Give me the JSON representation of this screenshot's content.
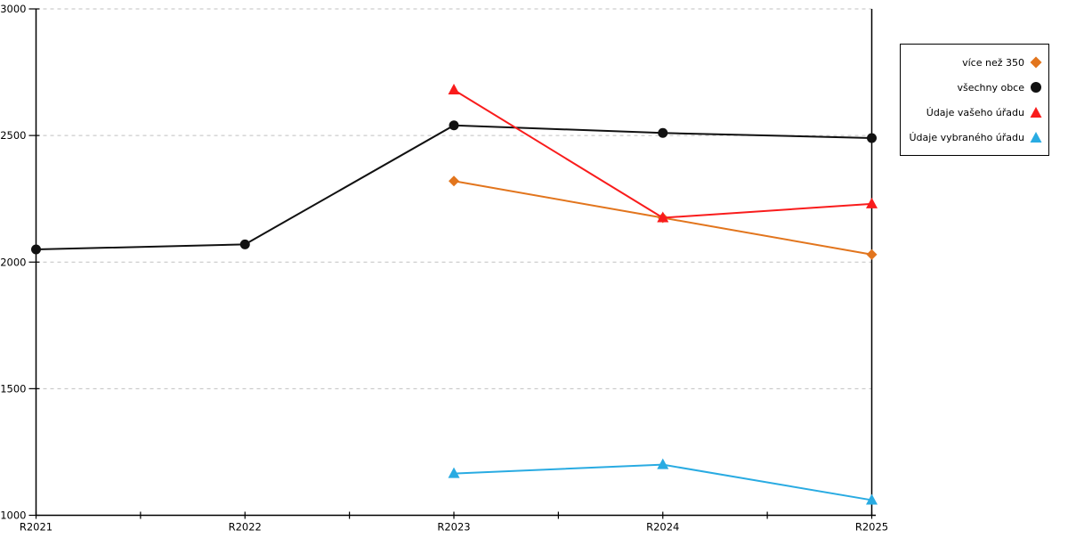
{
  "chart_data": {
    "type": "line",
    "title": "",
    "xlabel": "",
    "ylabel": "",
    "categories": [
      "R2021",
      "R2022",
      "R2023",
      "R2024",
      "R2025"
    ],
    "ylim": [
      1000,
      3000
    ],
    "y_ticks": [
      1000,
      1500,
      2000,
      2500,
      3000
    ],
    "grid": "horizontal dashed gridlines at 1500, 2000, 2500, 3000",
    "legend_position": "right",
    "series": [
      {
        "name": "více než 350",
        "color": "#E2751D",
        "marker": "diamond",
        "x": [
          "R2023",
          "R2024",
          "R2025"
        ],
        "values": [
          2320,
          2175,
          2030
        ]
      },
      {
        "name": "všechny obce",
        "color": "#111111",
        "marker": "circle",
        "x": [
          "R2021",
          "R2022",
          "R2023",
          "R2024",
          "R2025"
        ],
        "values": [
          2050,
          2070,
          2540,
          2510,
          2490
        ]
      },
      {
        "name": "Údaje vašeho úřadu",
        "color": "#F91C1C",
        "marker": "triangle",
        "x": [
          "R2023",
          "R2024",
          "R2025"
        ],
        "values": [
          2680,
          2175,
          2230
        ]
      },
      {
        "name": "Údaje vybraného úřadu",
        "color": "#29ABE2",
        "marker": "triangle",
        "x": [
          "R2023",
          "R2024",
          "R2025"
        ],
        "values": [
          1165,
          1200,
          1060
        ]
      }
    ]
  },
  "colors": {
    "background": "#FFFFFF",
    "axis": "#000000",
    "grid": "#C0C0C0"
  }
}
